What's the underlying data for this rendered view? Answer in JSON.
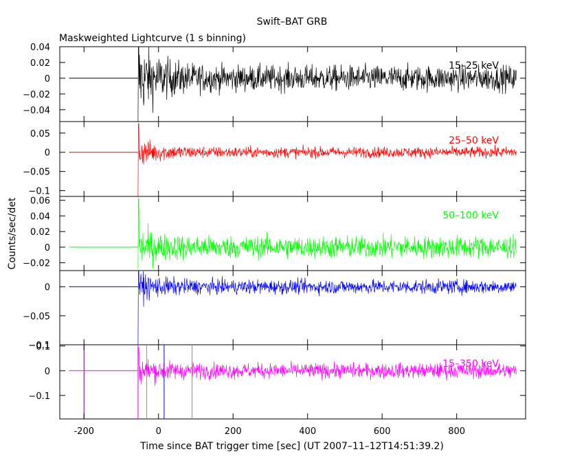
{
  "chart_data": {
    "type": "line",
    "title": "Swift–BAT GRB",
    "subtitle": "Maskweighted Lightcurve (1 s binning)",
    "xlabel": "Time since BAT trigger time [sec] (UT 2007–11–12T14:51:39.2)",
    "ylabel": "Counts/sec/det",
    "xlim": [
      -265,
      985
    ],
    "x_ticks": [
      "-200",
      "0",
      "200",
      "400",
      "600",
      "800"
    ],
    "x_tick_values": [
      -200,
      0,
      200,
      400,
      600,
      800
    ],
    "panels": [
      {
        "band": "15–25 keV",
        "color": "#000000",
        "ylim": [
          -0.055,
          0.04
        ],
        "y_ticks": [
          "0.04",
          "0.02",
          "0",
          "−0.02",
          "−0.04"
        ],
        "y_tick_values": [
          0.04,
          0.02,
          0,
          -0.02,
          -0.04
        ],
        "flat_from": -240,
        "burst_start": -55,
        "end": 960,
        "noise_initial": 0.025,
        "noise_late": 0.008,
        "spike_max": 0.04,
        "spike_min": -0.055
      },
      {
        "band": "25–50 keV",
        "color": "#ff0000",
        "ylim": [
          -0.115,
          0.08
        ],
        "y_ticks": [
          "0.05",
          "0",
          "−0.05",
          "−0.1"
        ],
        "y_tick_values": [
          0.05,
          0,
          -0.05,
          -0.1
        ],
        "flat_from": -240,
        "burst_start": -55,
        "end": 960,
        "noise_initial": 0.02,
        "noise_late": 0.007,
        "spike_max": 0.075,
        "spike_min": -0.115
      },
      {
        "band": "50–100 keV",
        "color": "#00ff00",
        "ylim": [
          -0.03,
          0.065
        ],
        "y_ticks": [
          "0.06",
          "0.04",
          "0.02",
          "0",
          "−0.02"
        ],
        "y_tick_values": [
          0.06,
          0.04,
          0.02,
          0,
          -0.02
        ],
        "flat_from": -240,
        "burst_start": -55,
        "end": 960,
        "noise_initial": 0.013,
        "noise_late": 0.007,
        "spike_max": 0.062,
        "spike_min": -0.028
      },
      {
        "band": "",
        "color": "#0000ff",
        "ylim": [
          -0.1,
          0.028
        ],
        "y_ticks": [
          "0",
          "−0.05",
          "−0.1"
        ],
        "y_tick_values": [
          0,
          -0.05,
          -0.1
        ],
        "flat_from": -240,
        "burst_start": -55,
        "end": 960,
        "noise_initial": 0.013,
        "noise_late": 0.006,
        "spike_max": 0.028,
        "spike_min": -0.1
      },
      {
        "band": "15–350 keV",
        "color": "#ff00ff",
        "ylim": [
          -0.195,
          0.105
        ],
        "y_ticks": [
          "0.1",
          "0",
          "−0.1"
        ],
        "y_tick_values": [
          0.1,
          0,
          -0.1
        ],
        "flat_from": -240,
        "burst_start": -55,
        "end": 960,
        "noise_initial": 0.03,
        "noise_late": 0.015,
        "spike_max": 0.095,
        "spike_min": -0.195,
        "markers": [
          {
            "x": -200,
            "color": "#800080"
          },
          {
            "x": -55,
            "color": "#ff00ff"
          },
          {
            "x": -32,
            "color": "#cc8800"
          },
          {
            "x": 15,
            "color": "#0000ff"
          },
          {
            "x": 90,
            "color": "#cc8800"
          }
        ]
      }
    ],
    "extra_tick_label": "−0.1",
    "grid": false
  }
}
